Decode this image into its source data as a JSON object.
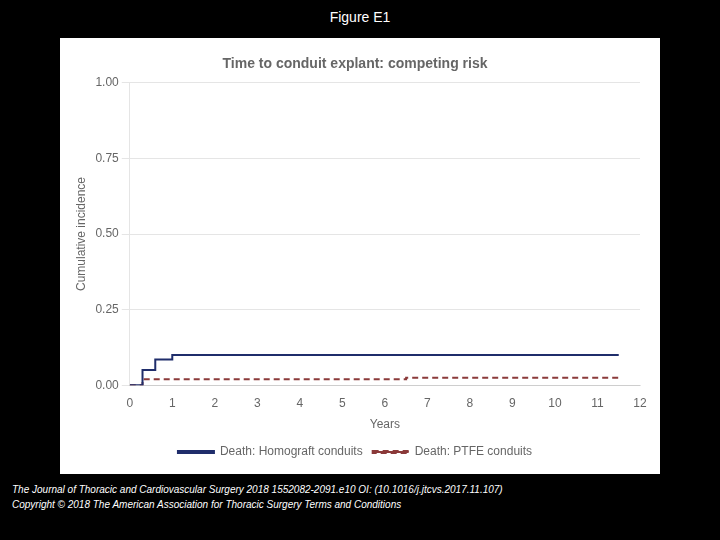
{
  "chart_data": {
    "type": "step",
    "figure_title": "Figure E1",
    "title": "Time to conduit explant: competing risk",
    "xlabel": "Years",
    "ylabel": "Cumulative incidence",
    "series": [
      {
        "name": "Death: Homograft conduits",
        "color": "#1f2d6b",
        "line_style": "solid",
        "x": [
          0,
          0.3,
          0.3,
          0.6,
          0.6,
          1.0,
          1.0,
          11.5
        ],
        "values": [
          0.0,
          0.0,
          0.05,
          0.05,
          0.085,
          0.085,
          0.1,
          0.1
        ]
      },
      {
        "name": "Death: PTFE conduits",
        "color": "#8b3a3a",
        "line_style": "dashed",
        "x": [
          0,
          0.3,
          0.3,
          6.5,
          6.5,
          11.5
        ],
        "values": [
          0.0,
          0.0,
          0.02,
          0.02,
          0.025,
          0.025
        ]
      }
    ],
    "xlim": [
      0,
      12
    ],
    "ylim": [
      0,
      1.0
    ],
    "xticks": [
      0,
      1,
      2,
      3,
      4,
      5,
      6,
      7,
      8,
      9,
      10,
      11,
      12
    ],
    "yticks": [
      {
        "value": 0,
        "label": "0.00"
      },
      {
        "value": 0.25,
        "label": "0.25"
      },
      {
        "value": 0.5,
        "label": "0.50"
      },
      {
        "value": 0.75,
        "label": "0.75"
      },
      {
        "value": 1.0,
        "label": "1.00"
      }
    ],
    "grid": "y",
    "legend": "bottom",
    "annotations": [
      "The Journal of Thoracic and Cardiovascular Surgery 2018  1552082-2091.e10 OI: (10.1016/j.jtcvs.2017.11.107)",
      "Copyright © 2018  The American Association for Thoracic Surgery  Terms and Conditions"
    ]
  }
}
